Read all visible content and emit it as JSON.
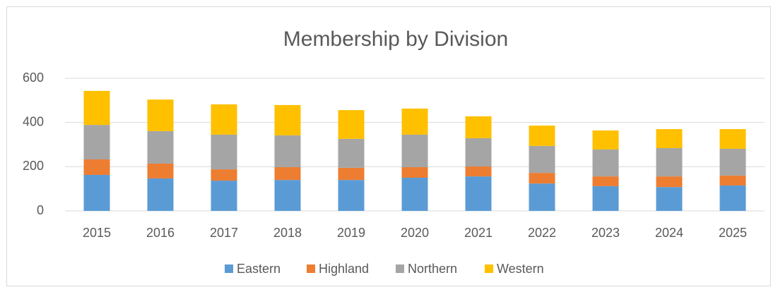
{
  "chart_data": {
    "type": "stacked_bar",
    "title": "Membership by Division",
    "categories": [
      "2015",
      "2016",
      "2017",
      "2018",
      "2019",
      "2020",
      "2021",
      "2022",
      "2023",
      "2024",
      "2025"
    ],
    "series": [
      {
        "name": "Eastern",
        "color": "#5b9bd5",
        "values": [
          163,
          147,
          137,
          140,
          140,
          150,
          156,
          124,
          112,
          108,
          115
        ]
      },
      {
        "name": "Highland",
        "color": "#ed7d31",
        "values": [
          70,
          67,
          51,
          58,
          55,
          48,
          45,
          48,
          44,
          48,
          45
        ]
      },
      {
        "name": "Northern",
        "color": "#a5a5a5",
        "values": [
          156,
          147,
          157,
          144,
          131,
          147,
          128,
          122,
          122,
          128,
          121
        ]
      },
      {
        "name": "Western",
        "color": "#ffc000",
        "values": [
          154,
          143,
          137,
          137,
          130,
          118,
          99,
          92,
          86,
          86,
          89
        ]
      }
    ],
    "ylim": [
      0,
      600
    ],
    "yticks": [
      0,
      200,
      400,
      600
    ],
    "grid": true,
    "legend": "bottom"
  }
}
